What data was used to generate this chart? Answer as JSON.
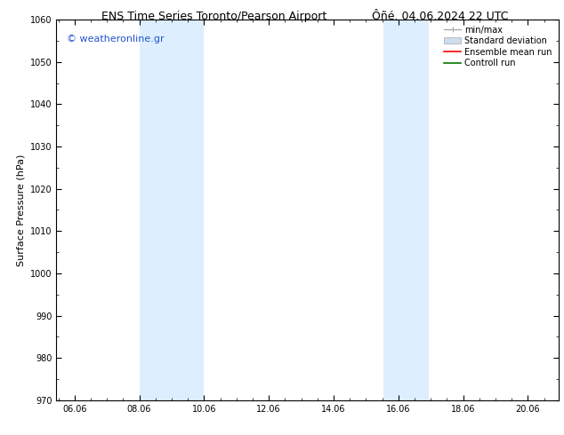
{
  "title_left": "ENS Time Series Toronto/Pearson Airport",
  "title_right": "Ôñé. 04.06.2024 22 UTC",
  "ylabel": "Surface Pressure (hPa)",
  "ylim": [
    970,
    1060
  ],
  "yticks": [
    970,
    980,
    990,
    1000,
    1010,
    1020,
    1030,
    1040,
    1050,
    1060
  ],
  "xlim_start": 5.5,
  "xlim_end": 21.0,
  "xticks": [
    6.06,
    8.06,
    10.06,
    12.06,
    14.06,
    16.06,
    18.06,
    20.06
  ],
  "xticklabels": [
    "06.06",
    "08.06",
    "10.06",
    "12.06",
    "14.06",
    "16.06",
    "18.06",
    "20.06"
  ],
  "shaded_bands": [
    {
      "x_start": 8.06,
      "x_end": 10.06,
      "color": "#ddeeff"
    },
    {
      "x_start": 15.6,
      "x_end": 17.0,
      "color": "#ddeeff"
    }
  ],
  "bg_color": "#ffffff",
  "plot_bg_color": "#ffffff",
  "watermark_text": "© weatheronline.gr",
  "watermark_color": "#2255cc",
  "legend_items": [
    {
      "label": "min/max",
      "color": "#aaaaaa",
      "lw": 1.0,
      "style": "minmax"
    },
    {
      "label": "Standard deviation",
      "color": "#ccddee",
      "lw": 5,
      "style": "band"
    },
    {
      "label": "Ensemble mean run",
      "color": "#ff0000",
      "lw": 1.2,
      "style": "line"
    },
    {
      "label": "Controll run",
      "color": "#007700",
      "lw": 1.2,
      "style": "line"
    }
  ],
  "font_size_title": 9,
  "font_size_axis": 8,
  "font_size_legend": 7,
  "font_size_watermark": 8,
  "tick_label_size": 7
}
